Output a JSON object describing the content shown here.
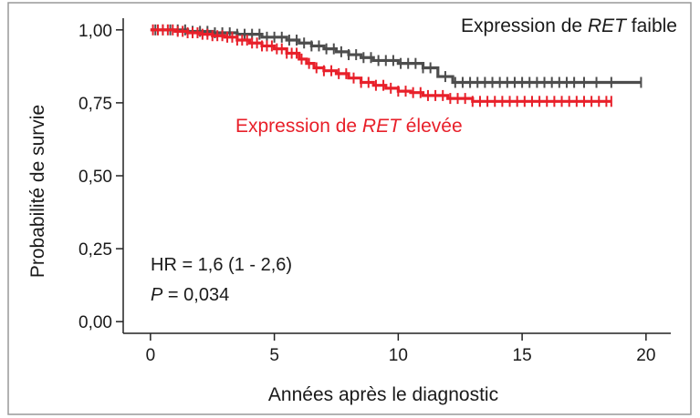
{
  "chart_data": {
    "type": "line",
    "title": "",
    "xlabel": "Années après le diagnostic",
    "ylabel": "Probabilité de survie",
    "xlim": [
      -1.1,
      21
    ],
    "ylim": [
      -0.04,
      1.04
    ],
    "x_ticks": [
      0,
      5,
      10,
      15,
      20
    ],
    "x_tick_labels": [
      "0",
      "5",
      "10",
      "15",
      "20"
    ],
    "y_ticks": [
      0,
      0.25,
      0.5,
      0.75,
      1.0
    ],
    "y_tick_labels": [
      "0,00",
      "0,25",
      "0,50",
      "0,75",
      "1,00"
    ],
    "grid": false,
    "series": [
      {
        "name": "Expression de RET faible",
        "label_prefix": "Expression de ",
        "label_italic": "RET",
        "label_suffix": " faible",
        "color": "#4d4d4d",
        "step": true,
        "x": [
          0,
          1.5,
          2.5,
          3.5,
          4.5,
          5.5,
          6.0,
          6.5,
          7.0,
          7.5,
          8.0,
          8.5,
          9.0,
          10.0,
          11.0,
          11.6,
          12.2,
          19.8
        ],
        "y": [
          1.0,
          0.995,
          0.99,
          0.985,
          0.975,
          0.965,
          0.955,
          0.945,
          0.935,
          0.925,
          0.915,
          0.905,
          0.895,
          0.885,
          0.87,
          0.84,
          0.82,
          0.82
        ],
        "censor_x": [
          0.2,
          0.5,
          0.8,
          1.1,
          1.4,
          1.7,
          2.0,
          2.3,
          2.6,
          2.9,
          3.2,
          3.5,
          3.8,
          4.1,
          4.4,
          4.7,
          5.0,
          5.3,
          5.6,
          5.9,
          6.2,
          6.5,
          6.8,
          7.1,
          7.4,
          7.7,
          8.0,
          8.3,
          8.6,
          8.9,
          9.2,
          9.5,
          9.8,
          10.1,
          10.4,
          10.7,
          11.0,
          11.3,
          11.9,
          12.3,
          12.6,
          12.9,
          13.2,
          13.5,
          13.8,
          14.1,
          14.4,
          14.7,
          15.0,
          15.3,
          15.6,
          15.9,
          16.2,
          16.5,
          16.8,
          17.1,
          17.5,
          18.0,
          18.6,
          19.8
        ]
      },
      {
        "name": "Expression de RET élevée",
        "label_prefix": "Expression de ",
        "label_italic": "RET",
        "label_suffix": " élevée",
        "color": "#e8202a",
        "step": true,
        "x": [
          0,
          1.0,
          1.5,
          2.0,
          2.5,
          3.0,
          3.5,
          4.0,
          4.5,
          5.0,
          5.5,
          6.0,
          6.3,
          6.6,
          7.0,
          7.5,
          8.0,
          8.5,
          9.0,
          9.5,
          10.0,
          10.5,
          11.0,
          12.0,
          13.0,
          18.6
        ],
        "y": [
          1.0,
          0.995,
          0.99,
          0.985,
          0.98,
          0.975,
          0.965,
          0.955,
          0.945,
          0.935,
          0.92,
          0.9,
          0.885,
          0.87,
          0.86,
          0.85,
          0.835,
          0.82,
          0.81,
          0.8,
          0.79,
          0.785,
          0.775,
          0.765,
          0.755,
          0.755
        ],
        "censor_x": [
          0.1,
          0.3,
          0.5,
          0.7,
          0.9,
          1.1,
          1.3,
          1.5,
          1.7,
          1.9,
          2.1,
          2.3,
          2.5,
          2.7,
          2.9,
          3.1,
          3.3,
          3.5,
          3.7,
          3.9,
          4.1,
          4.3,
          4.5,
          4.7,
          4.9,
          5.1,
          5.3,
          5.5,
          5.7,
          5.9,
          6.1,
          6.4,
          6.7,
          7.0,
          7.3,
          7.6,
          7.9,
          8.2,
          8.5,
          8.8,
          9.1,
          9.4,
          9.7,
          10.0,
          10.3,
          10.6,
          10.9,
          11.2,
          11.5,
          11.8,
          12.1,
          12.4,
          12.7,
          13.0,
          13.3,
          13.6,
          13.9,
          14.2,
          14.5,
          14.8,
          15.1,
          15.4,
          15.7,
          16.0,
          16.3,
          16.6,
          16.9,
          17.2,
          17.5,
          17.8,
          18.1,
          18.4,
          18.6
        ]
      }
    ],
    "annotations": {
      "hr_text": "HR = 1,6 (1 - 2,6)",
      "p_label": "P",
      "p_value": " =  0,034"
    }
  }
}
